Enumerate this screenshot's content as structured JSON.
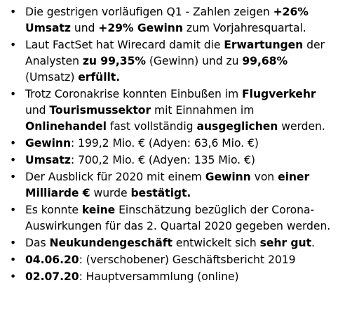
{
  "bullets": [
    {
      "segments": [
        {
          "t": "Die gestrigen vorläufigen Q1 - Zahlen zeigen ",
          "b": false
        },
        {
          "t": "+26% Umsatz",
          "b": true
        },
        {
          "t": " und ",
          "b": false
        },
        {
          "t": "+29% Gewinn",
          "b": true
        },
        {
          "t": " zum Vorjahresquartal.",
          "b": false
        }
      ]
    },
    {
      "segments": [
        {
          "t": "Laut FactSet hat Wirecard damit die ",
          "b": false
        },
        {
          "t": "Erwartungen",
          "b": true
        },
        {
          "t": " der Analysten ",
          "b": false
        },
        {
          "t": "zu 99,35%",
          "b": true
        },
        {
          "t": " (Gewinn) und zu ",
          "b": false
        },
        {
          "t": "99,68%",
          "b": true
        },
        {
          "t": " (Umsatz) ",
          "b": false
        },
        {
          "t": "erfüllt.",
          "b": true
        }
      ]
    },
    {
      "segments": [
        {
          "t": "Trotz Coronakrise konnten Einbußen im ",
          "b": false
        },
        {
          "t": "Flugverkehr",
          "b": true
        },
        {
          "t": " und ",
          "b": false
        },
        {
          "t": "Tourismussektor",
          "b": true
        },
        {
          "t": " mit Einnahmen im ",
          "b": false
        },
        {
          "t": "Onlinehandel",
          "b": true
        },
        {
          "t": " fast vollständig ",
          "b": false
        },
        {
          "t": "ausgeglichen",
          "b": true
        },
        {
          "t": " werden.",
          "b": false
        }
      ]
    },
    {
      "segments": [
        {
          "t": "Gewinn",
          "b": true
        },
        {
          "t": ": 199,2 Mio. € (Adyen: 63,6 Mio. €)",
          "b": false
        }
      ]
    },
    {
      "segments": [
        {
          "t": "Umsatz",
          "b": true
        },
        {
          "t": ": 700,2 Mio. € (Adyen: 135 Mio. €)",
          "b": false
        }
      ]
    },
    {
      "segments": [
        {
          "t": "Der Ausblick für 2020 mit einem ",
          "b": false
        },
        {
          "t": "Gewinn",
          "b": true
        },
        {
          "t": " von ",
          "b": false
        },
        {
          "t": "einer Milliarde €",
          "b": true
        },
        {
          "t": " wurde ",
          "b": false
        },
        {
          "t": "bestätigt.",
          "b": true
        }
      ]
    },
    {
      "segments": [
        {
          "t": "Es konnte ",
          "b": false
        },
        {
          "t": "keine",
          "b": true
        },
        {
          "t": " Einschätzung bezüglich der Corona-Auswirkungen für das 2. Quartal 2020 gegeben werden.",
          "b": false
        }
      ]
    },
    {
      "segments": [
        {
          "t": "Das ",
          "b": false
        },
        {
          "t": "Neukundengeschäft",
          "b": true
        },
        {
          "t": " entwickelt sich ",
          "b": false
        },
        {
          "t": "sehr gut",
          "b": true
        },
        {
          "t": ".",
          "b": false
        }
      ]
    },
    {
      "segments": [
        {
          "t": "04.06.20",
          "b": true
        },
        {
          "t": ": (verschobener) Geschäftsbericht 2019",
          "b": false
        }
      ]
    },
    {
      "segments": [
        {
          "t": "02.07.20",
          "b": true
        },
        {
          "t": ": Hauptversammlung (online)",
          "b": false
        }
      ]
    }
  ],
  "bullet_glyph": "•"
}
